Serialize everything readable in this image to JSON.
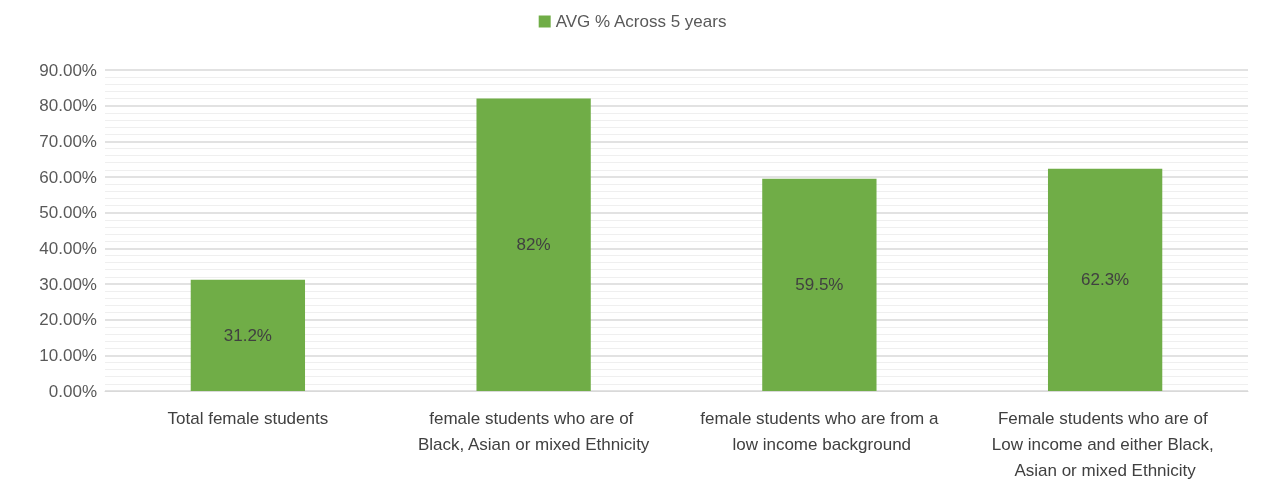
{
  "chart_data": {
    "type": "bar",
    "categories": [
      "Total female students",
      "female students who are of Black, Asian or mixed Ethnicity",
      "female students who are from a low income background",
      "Female students who are of Low income and either Black, Asian or mixed Ethnicity"
    ],
    "series": [
      {
        "name": "AVG % Across 5 years",
        "color": "#70ad47",
        "values": [
          31.2,
          82,
          59.5,
          62.3
        ],
        "value_labels": [
          "31.2%",
          "82%",
          "59.5%",
          "62.3%"
        ]
      }
    ],
    "ylim": [
      0,
      90
    ],
    "yticks": [
      {
        "value": 0,
        "label": "0.00%"
      },
      {
        "value": 10,
        "label": "10.00%"
      },
      {
        "value": 20,
        "label": "20.00%"
      },
      {
        "value": 30,
        "label": "30.00%"
      },
      {
        "value": 40,
        "label": "40.00%"
      },
      {
        "value": 50,
        "label": "50.00%"
      },
      {
        "value": 60,
        "label": "60.00%"
      },
      {
        "value": 70,
        "label": "70.00%"
      },
      {
        "value": 80,
        "label": "80.00%"
      },
      {
        "value": 90,
        "label": "90.00%"
      }
    ],
    "grid": "y",
    "legend": "top"
  }
}
